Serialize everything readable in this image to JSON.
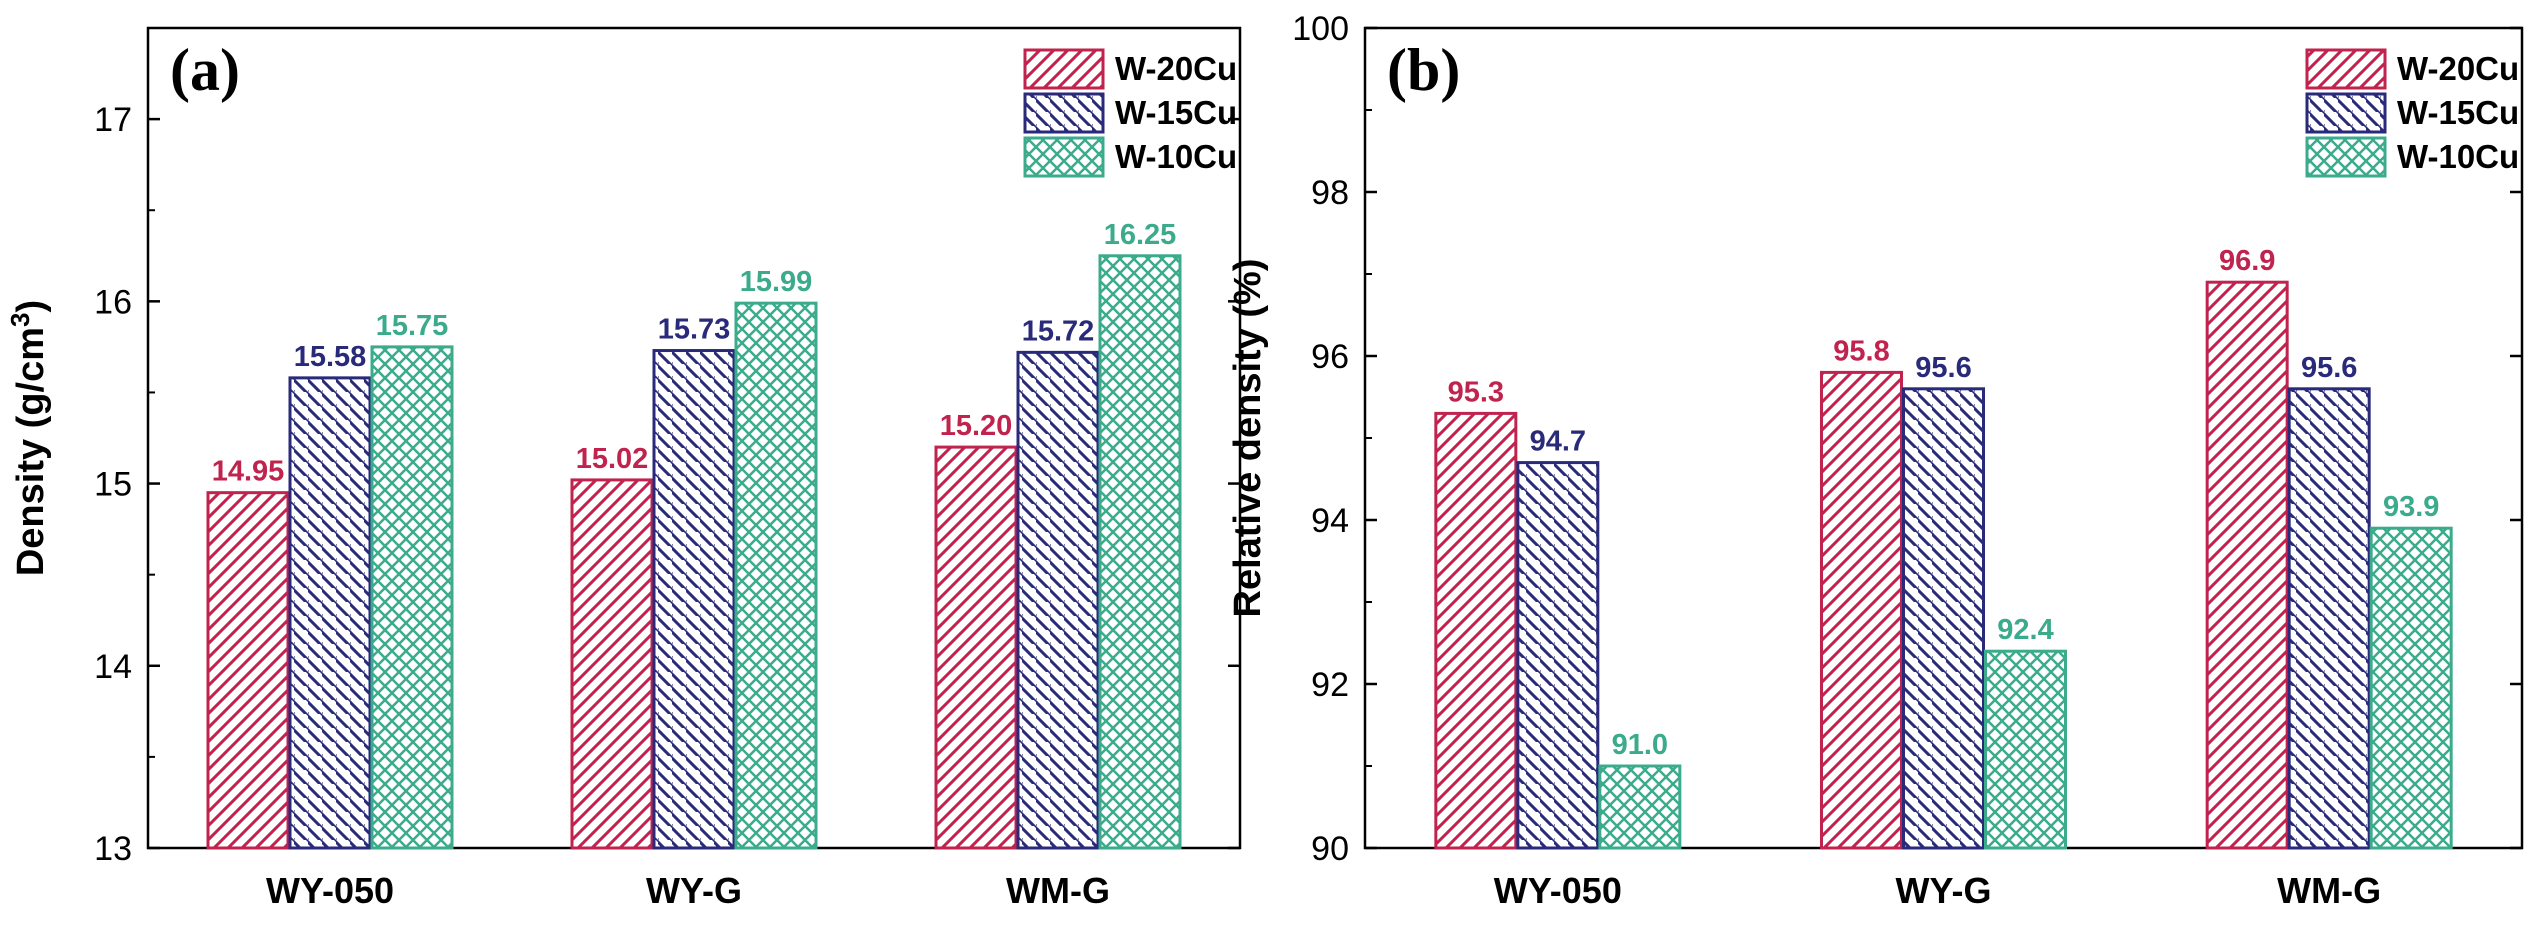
{
  "colors": {
    "W-20Cu": "#c0234e",
    "W-15Cu": "#2a2a7a",
    "W-10Cu": "#3bab8c"
  },
  "chart_data": [
    {
      "type": "bar",
      "panel_label": "(a)",
      "title": "",
      "xlabel": "",
      "ylabel_main": "Density (g/cm",
      "ylabel_sup": "3",
      "ylabel_close": ")",
      "ylim": [
        13,
        17.5
      ],
      "yticks": [
        13,
        14,
        15,
        16,
        17
      ],
      "categories": [
        "WY-050",
        "WY-G",
        "WM-G"
      ],
      "legend_position": "top-right",
      "series": [
        {
          "name": "W-20Cu",
          "pattern": "hatch-forward",
          "values": [
            14.95,
            15.02,
            15.2
          ],
          "labels": [
            "14.95",
            "15.02",
            "15.20"
          ]
        },
        {
          "name": "W-15Cu",
          "pattern": "hatch-back",
          "values": [
            15.58,
            15.73,
            15.72
          ],
          "labels": [
            "15.58",
            "15.73",
            "15.72"
          ]
        },
        {
          "name": "W-10Cu",
          "pattern": "crosshatch",
          "values": [
            15.75,
            15.99,
            16.25
          ],
          "labels": [
            "15.75",
            "15.99",
            "16.25"
          ]
        }
      ]
    },
    {
      "type": "bar",
      "panel_label": "(b)",
      "title": "",
      "xlabel": "",
      "ylabel_main": "Relative density (%)",
      "ylabel_sup": "",
      "ylabel_close": "",
      "ylim": [
        90,
        100
      ],
      "yticks": [
        90,
        92,
        94,
        96,
        98,
        100
      ],
      "categories": [
        "WY-050",
        "WY-G",
        "WM-G"
      ],
      "legend_position": "top-right",
      "series": [
        {
          "name": "W-20Cu",
          "pattern": "hatch-forward",
          "values": [
            95.3,
            95.8,
            96.9
          ],
          "labels": [
            "95.3",
            "95.8",
            "96.9"
          ]
        },
        {
          "name": "W-15Cu",
          "pattern": "hatch-back",
          "values": [
            94.7,
            95.6,
            95.6
          ],
          "labels": [
            "94.7",
            "95.6",
            "95.6"
          ]
        },
        {
          "name": "W-10Cu",
          "pattern": "crosshatch",
          "values": [
            91.0,
            92.4,
            93.9
          ],
          "labels": [
            "91.0",
            "92.4",
            "93.9"
          ]
        }
      ]
    }
  ]
}
